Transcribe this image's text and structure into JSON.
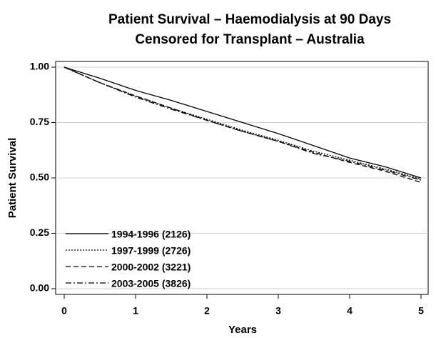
{
  "chart_data": {
    "type": "line",
    "title": "Patient Survival – Haemodialysis at 90 Days",
    "subtitle": "Censored for Transplant – Australia",
    "x_label": "Years",
    "y_label": "Patient Survival",
    "x": [
      0,
      0.5,
      1,
      1.5,
      2,
      2.5,
      3,
      3.5,
      4,
      4.5,
      5
    ],
    "series": [
      {
        "name": "1994-1996 (2126)",
        "color": "#000000",
        "style": "solid",
        "values": [
          1.0,
          0.95,
          0.895,
          0.85,
          0.8,
          0.75,
          0.7,
          0.645,
          0.59,
          0.55,
          0.5
        ]
      },
      {
        "name": "1997-1999 (2726)",
        "color": "#000000",
        "style": "dotted",
        "values": [
          1.0,
          0.93,
          0.87,
          0.815,
          0.765,
          0.715,
          0.67,
          0.62,
          0.58,
          0.54,
          0.495
        ]
      },
      {
        "name": "2000-2002 (3221)",
        "color": "#000000",
        "style": "dashed",
        "values": [
          1.0,
          0.93,
          0.87,
          0.815,
          0.76,
          0.71,
          0.665,
          0.615,
          0.57,
          0.53,
          0.48
        ]
      },
      {
        "name": "2003-2005 (3826)",
        "color": "#000000",
        "style": "dashdot",
        "values": [
          1.0,
          0.93,
          0.865,
          0.81,
          0.76,
          0.71,
          0.665,
          0.61,
          0.575,
          0.535,
          0.49
        ]
      }
    ],
    "xlim": [
      0,
      5
    ],
    "ylim": [
      0,
      1
    ],
    "xticks": [
      0,
      1,
      2,
      3,
      4,
      5
    ],
    "yticks": [
      {
        "value": 0,
        "label": "0.00"
      },
      {
        "value": 0.25,
        "label": "0.25"
      },
      {
        "value": 0.5,
        "label": "0.50"
      },
      {
        "value": 0.75,
        "label": "0.75"
      },
      {
        "value": 1,
        "label": "1.00"
      }
    ],
    "grid": true,
    "legend": "lower left"
  }
}
